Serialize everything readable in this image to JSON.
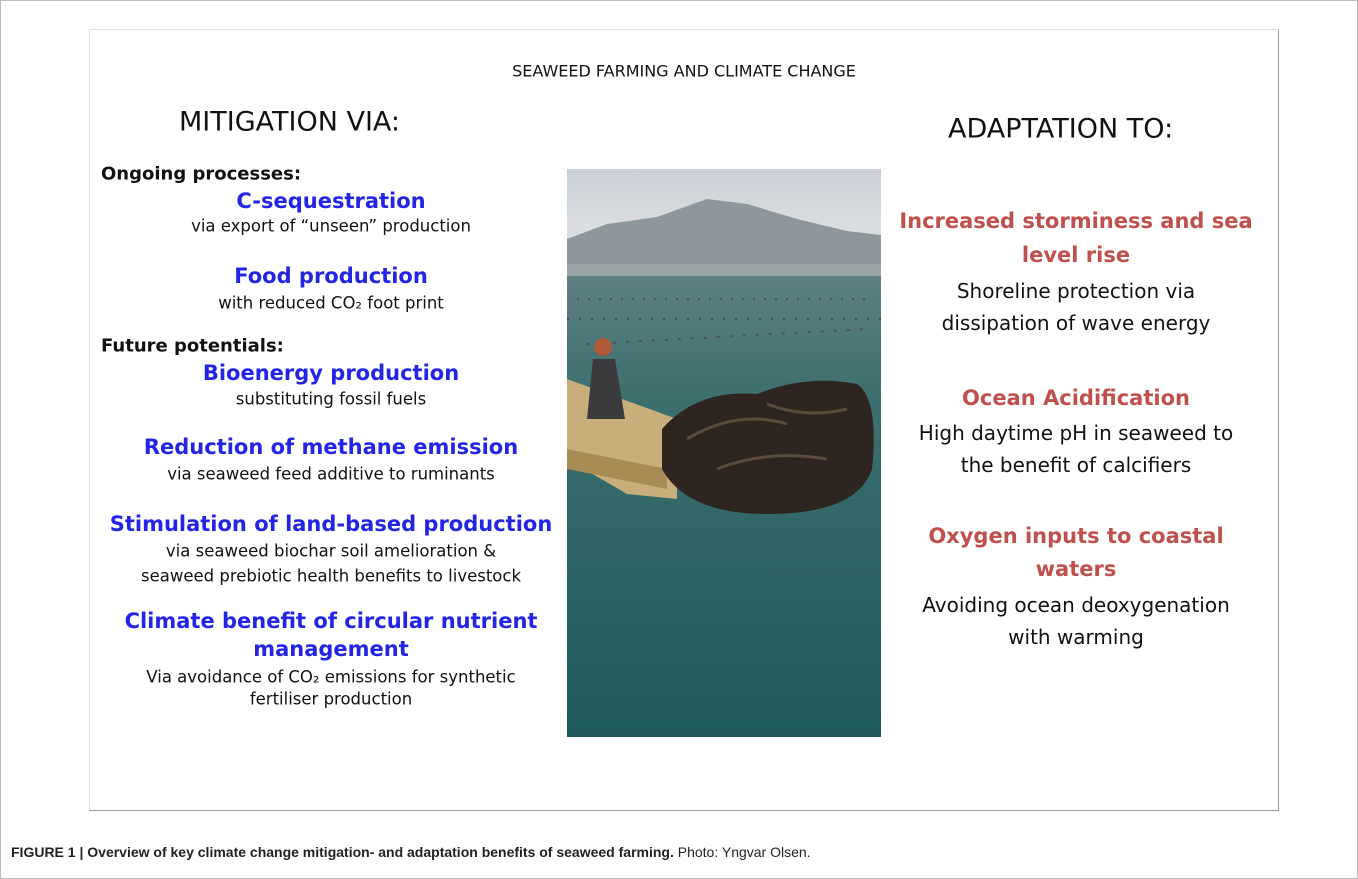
{
  "figure": {
    "title": "SEAWEED FARMING AND CLIMATE CHANGE",
    "mitigation": {
      "heading": "MITIGATION VIA:",
      "groups": [
        {
          "label": "Ongoing processes:",
          "items": [
            {
              "title": [
                "C-sequestration"
              ],
              "text": [
                "via export of “unseen” production"
              ]
            },
            {
              "title": [
                "Food production"
              ],
              "text": [
                "with reduced CO₂ foot print"
              ]
            }
          ]
        },
        {
          "label": "Future potentials:",
          "items": [
            {
              "title": [
                "Bioenergy production"
              ],
              "text": [
                "substituting fossil fuels"
              ]
            },
            {
              "title": [
                "Reduction of methane emission"
              ],
              "text": [
                "via seaweed feed additive to ruminants"
              ]
            },
            {
              "title": [
                "Stimulation of land-based production"
              ],
              "text": [
                "via seaweed biochar soil amelioration &",
                "seaweed prebiotic health benefits to livestock"
              ]
            },
            {
              "title": [
                "Climate benefit of circular nutrient",
                "management"
              ],
              "text": [
                "Via avoidance of CO₂ emissions  for synthetic",
                "fertiliser production"
              ]
            }
          ]
        }
      ]
    },
    "adaptation": {
      "heading": "ADAPTATION TO:",
      "items": [
        {
          "title": [
            "Increased storminess and sea",
            "level rise"
          ],
          "text": [
            "Shoreline protection via",
            "dissipation of wave energy"
          ]
        },
        {
          "title": [
            "Ocean Acidification"
          ],
          "text": [
            "High daytime pH in seaweed to",
            "the benefit of calcifiers"
          ]
        },
        {
          "title": [
            "Oxygen inputs to coastal",
            "waters"
          ],
          "text": [
            "Avoiding ocean deoxygenation",
            "with warming"
          ]
        }
      ]
    }
  },
  "caption": {
    "label": "FIGURE 1 | Overview of key climate change mitigation- and adaptation benefits of seaweed farming.",
    "credit": "Photo: Yngvar Olsen."
  }
}
